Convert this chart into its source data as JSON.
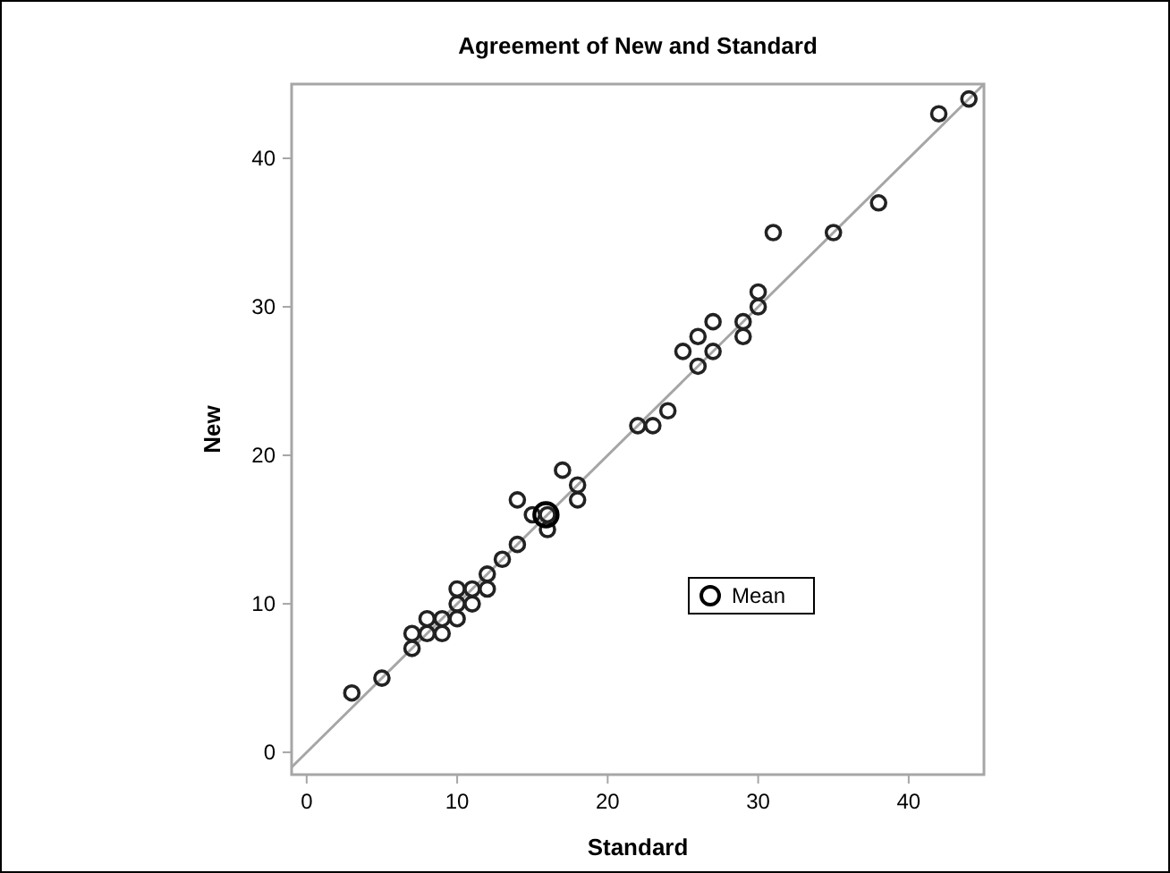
{
  "chart_data": {
    "type": "scatter",
    "title": "Agreement of New and Standard",
    "xlabel": "Standard",
    "ylabel": "New",
    "xlim": [
      -1,
      45
    ],
    "ylim": [
      -1.5,
      45
    ],
    "xticks": [
      0,
      10,
      20,
      30,
      40
    ],
    "yticks": [
      0,
      10,
      20,
      30,
      40
    ],
    "grid": false,
    "legend": "bottom right",
    "marker": "circle",
    "series": [
      {
        "type": "line",
        "marker": "none",
        "color": "#a6a6a6",
        "x": [
          -1,
          45
        ],
        "values": [
          -1,
          45
        ]
      },
      {
        "color": "#222222",
        "x": [
          3,
          5,
          7,
          7,
          8,
          8,
          9,
          9,
          10,
          10,
          10,
          11,
          11,
          12,
          12,
          13,
          14,
          14,
          15,
          16,
          16,
          17,
          18,
          18,
          22,
          23,
          24,
          25,
          26,
          26,
          27,
          27,
          29,
          29,
          30,
          30,
          31,
          35,
          38,
          42,
          44
        ],
        "values": [
          4,
          5,
          7,
          8,
          8,
          9,
          8,
          9,
          9,
          10,
          11,
          10,
          11,
          11,
          12,
          13,
          14,
          17,
          16,
          15,
          16,
          19,
          17,
          18,
          22,
          22,
          23,
          27,
          26,
          28,
          27,
          29,
          28,
          29,
          30,
          31,
          35,
          35,
          37,
          43,
          44
        ]
      },
      {
        "name": "Mean",
        "color": "#000000",
        "x": [
          15.9
        ],
        "values": [
          16
        ]
      }
    ]
  }
}
